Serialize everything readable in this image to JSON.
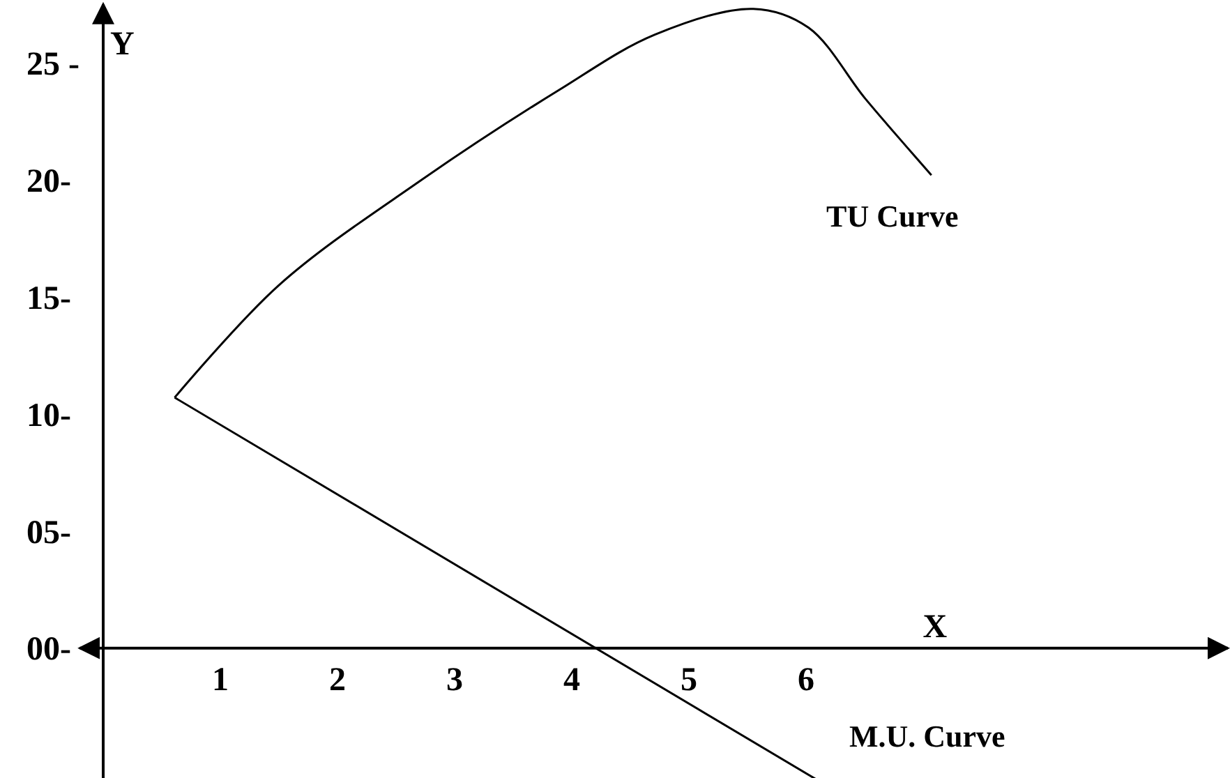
{
  "chart_data": {
    "type": "line",
    "xlabel": "X",
    "ylabel": "Y",
    "xlim": [
      -0.2,
      9.6
    ],
    "ylim": [
      -6.5,
      27.5
    ],
    "xticks": [
      1,
      2,
      3,
      4,
      5,
      6
    ],
    "yticks": [
      {
        "value": 0,
        "label": "00-"
      },
      {
        "value": 5,
        "label": "05-"
      },
      {
        "value": 10,
        "label": "10-"
      },
      {
        "value": 15,
        "label": "15-"
      },
      {
        "value": 20,
        "label": "20-"
      },
      {
        "value": 25,
        "label": "25 -"
      }
    ],
    "grid": false,
    "marker": "none",
    "line_style": "solid",
    "series": [
      {
        "name": "TU Curve",
        "color": "#000000",
        "x": [
          0.61,
          1.5,
          2.69,
          3.88,
          4.71,
          5.55,
          6.02,
          6.5,
          6.86,
          7.07
        ],
        "values": [
          10.7,
          15.5,
          19.9,
          23.8,
          26.2,
          27.3,
          26.5,
          23.5,
          21.4,
          20.2
        ]
      },
      {
        "name": "M.U. Curve",
        "color": "#000000",
        "x": [
          0.61,
          6.32
        ],
        "values": [
          10.7,
          -6.3
        ]
      }
    ]
  }
}
